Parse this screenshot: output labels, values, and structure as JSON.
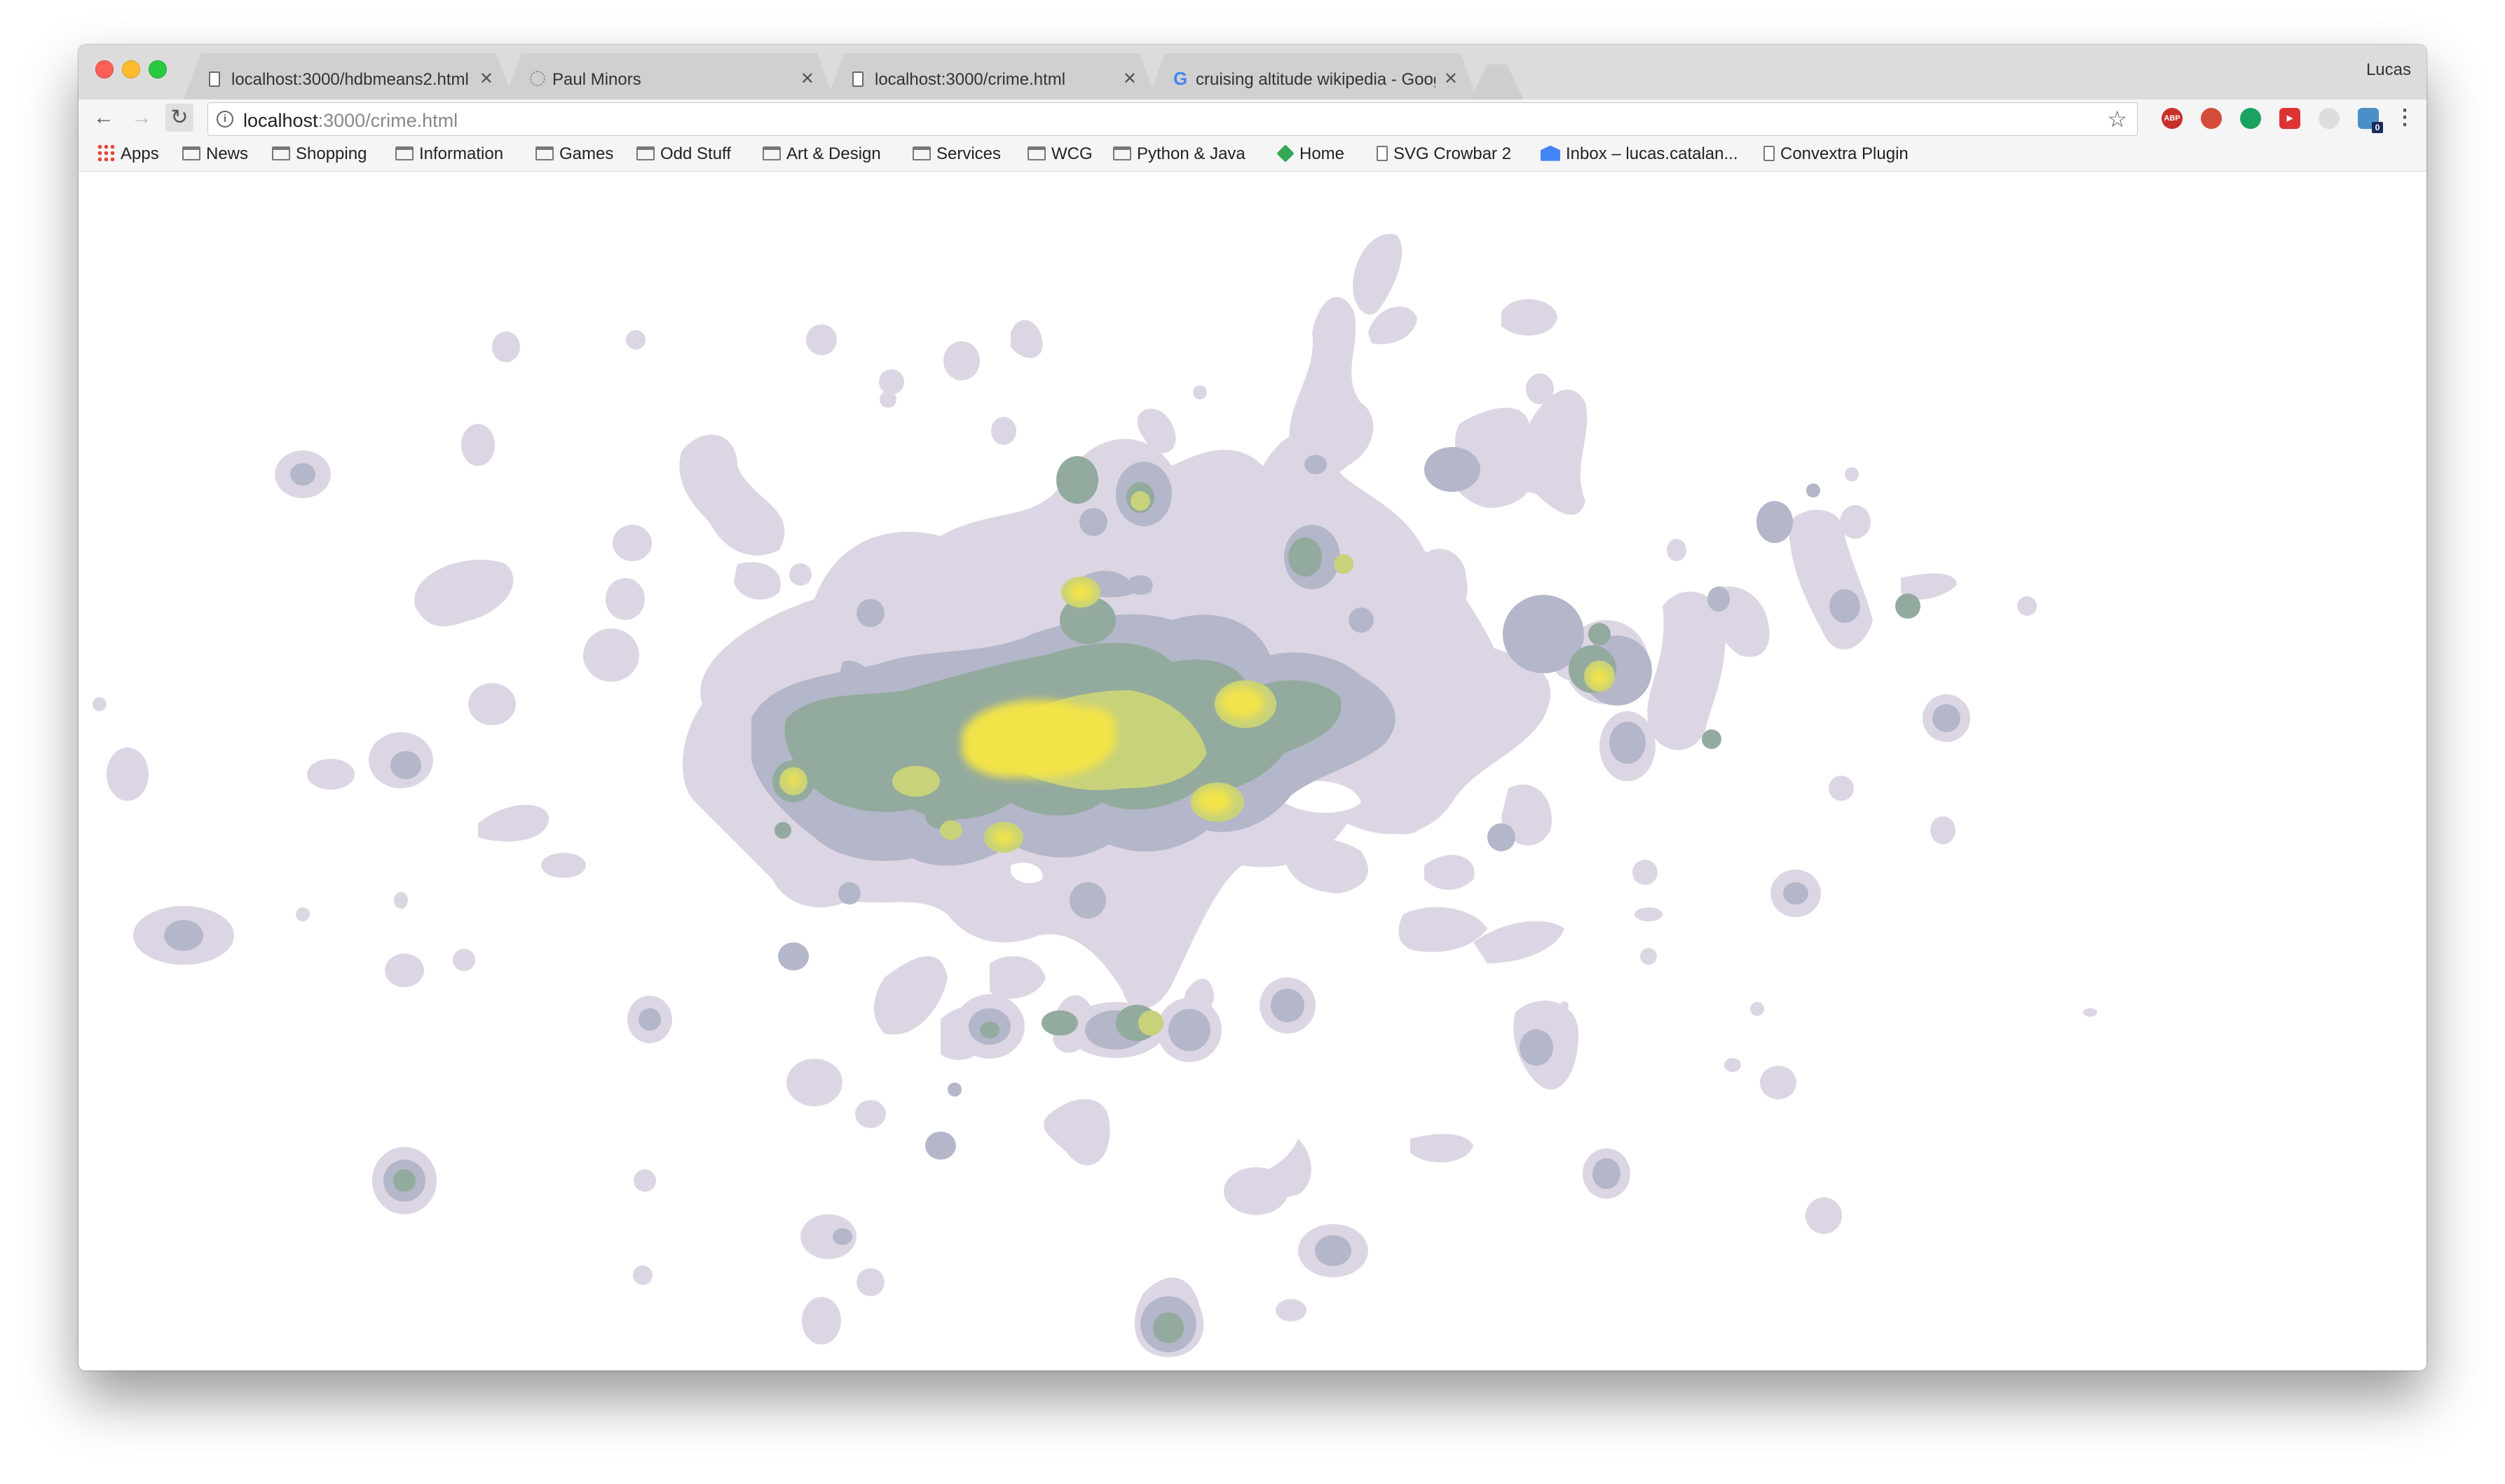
{
  "browser": {
    "profile_name": "Lucas",
    "tabs": [
      {
        "title": "localhost:3000/hdbmeans2.html",
        "icon": "page-icon",
        "active": false
      },
      {
        "title": "Paul Minors",
        "icon": "loading-icon",
        "active": false
      },
      {
        "title": "localhost:3000/crime.html",
        "icon": "page-icon",
        "active": true
      },
      {
        "title": "cruising altitude wikipedia - Google Search",
        "icon": "google-icon",
        "active": false
      }
    ],
    "address": {
      "host": "localhost",
      "path": ":3000/crime.html"
    },
    "bookmarks": [
      {
        "label": "Apps",
        "icon": "apps-icon"
      },
      {
        "label": "News",
        "icon": "folder-icon"
      },
      {
        "label": "Shopping",
        "icon": "folder-icon"
      },
      {
        "label": "Information",
        "icon": "folder-icon"
      },
      {
        "label": "Games",
        "icon": "folder-icon"
      },
      {
        "label": "Odd Stuff",
        "icon": "folder-icon"
      },
      {
        "label": "Art & Design",
        "icon": "folder-icon"
      },
      {
        "label": "Services",
        "icon": "folder-icon"
      },
      {
        "label": "WCG",
        "icon": "folder-icon"
      },
      {
        "label": "Python & Java",
        "icon": "folder-icon"
      },
      {
        "label": "Home",
        "icon": "home-icon"
      },
      {
        "label": "SVG Crowbar 2",
        "icon": "page-icon"
      },
      {
        "label": "Inbox – lucas.catalan...",
        "icon": "inbox-icon"
      },
      {
        "label": "Convextra Plugin",
        "icon": "page-icon"
      }
    ],
    "extensions": [
      "adblock-icon",
      "ghostery-icon",
      "hangouts-icon",
      "play-icon",
      "grey-extension-icon",
      "lock-extension-icon"
    ],
    "extension_badge": "0"
  },
  "visualization": {
    "kind": "density contour map",
    "colors": {
      "level1": "#dcd6e4",
      "level2": "#b4b6c9",
      "level3": "#93aa9e",
      "level4": "#c8d27a",
      "level5": "#f2e34a"
    }
  }
}
